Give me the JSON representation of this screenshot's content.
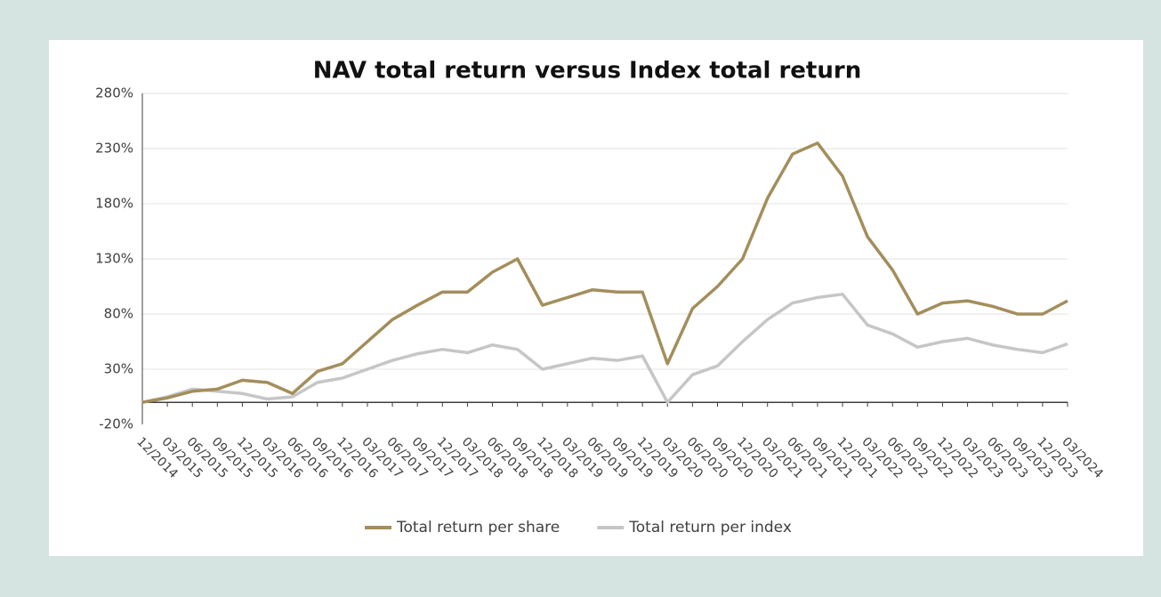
{
  "chart_data": {
    "type": "line",
    "title": "NAV total return versus Index total return",
    "categories": [
      "12/2014",
      "03/2015",
      "06/2015",
      "09/2015",
      "12/2015",
      "03/2016",
      "06/2016",
      "09/2016",
      "12/2016",
      "03/2017",
      "06/2017",
      "09/2017",
      "12/2017",
      "03/2018",
      "06/2018",
      "09/2018",
      "12/2018",
      "03/2019",
      "06/2019",
      "09/2019",
      "12/2019",
      "03/2020",
      "06/2020",
      "09/2020",
      "12/2020",
      "03/2021",
      "06/2021",
      "09/2021",
      "12/2021",
      "03/2022",
      "06/2022",
      "09/2022",
      "12/2022",
      "03/2023",
      "06/2023",
      "09/2023",
      "12/2023",
      "03/2024"
    ],
    "series": [
      {
        "name": "Total return per share",
        "color": "#a38e5c",
        "values": [
          0,
          4,
          10,
          12,
          20,
          18,
          8,
          28,
          35,
          55,
          75,
          88,
          100,
          100,
          118,
          130,
          88,
          95,
          102,
          100,
          100,
          35,
          85,
          105,
          130,
          185,
          225,
          235,
          205,
          150,
          120,
          80,
          90,
          92,
          87,
          80,
          80,
          92
        ]
      },
      {
        "name": "Total return per index",
        "color": "#c6c6c6",
        "values": [
          0,
          5,
          12,
          10,
          8,
          3,
          5,
          18,
          22,
          30,
          38,
          44,
          48,
          45,
          52,
          48,
          30,
          35,
          40,
          38,
          42,
          0,
          25,
          33,
          55,
          75,
          90,
          95,
          98,
          70,
          62,
          50,
          55,
          58,
          52,
          48,
          45,
          53
        ]
      }
    ],
    "ylim": [
      -20,
      280
    ],
    "yticks": [
      {
        "value": -20,
        "label": "-20%"
      },
      {
        "value": 30,
        "label": "30%"
      },
      {
        "value": 80,
        "label": "80%"
      },
      {
        "value": 130,
        "label": "130%"
      },
      {
        "value": 180,
        "label": "180%"
      },
      {
        "value": 230,
        "label": "230%"
      },
      {
        "value": 280,
        "label": "280%"
      }
    ],
    "grid": true,
    "legend": "bottom"
  }
}
